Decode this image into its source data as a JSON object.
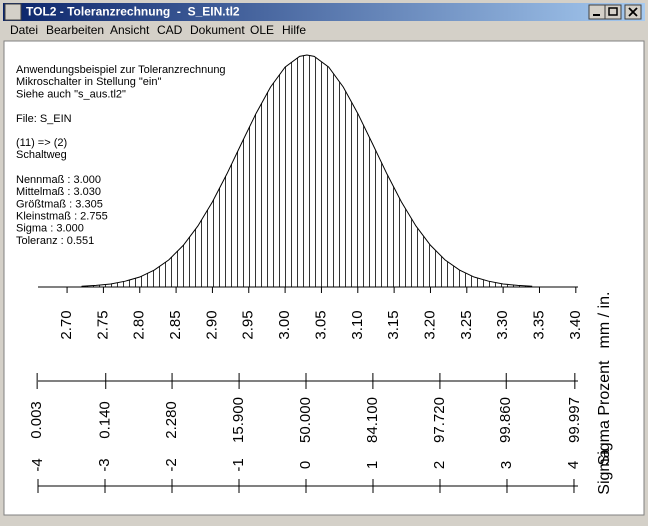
{
  "window": {
    "title": "TOL2 - Toleranzrechnung  -  S_EIN.tl2"
  },
  "menu": [
    "Datei",
    "Bearbeiten",
    "Ansicht",
    "CAD",
    "Dokument",
    "OLE",
    "Hilfe"
  ],
  "info_lines": [
    [
      "Anwendungsbeispiel zur Toleranzrechnung",
      "Mikroschalter in Stellung \"ein\"",
      "Siehe auch \"s_aus.tl2\""
    ],
    [
      "File: S_EIN"
    ],
    [
      "(11) => (2)",
      "Schaltweg"
    ],
    [
      "Nennmaß : 3.000",
      "Mittelmaß : 3.030",
      "Größtmaß : 3.305",
      "Kleinstmaß : 2.755",
      "Sigma : 3.000",
      "Toleranz : 0.551"
    ]
  ],
  "chart_data": {
    "type": "area",
    "x": [
      2.72,
      2.74,
      2.76,
      2.78,
      2.8,
      2.82,
      2.84,
      2.86,
      2.88,
      2.9,
      2.92,
      2.94,
      2.96,
      2.98,
      3.0,
      3.02,
      3.03,
      3.04,
      3.06,
      3.08,
      3.1,
      3.12,
      3.14,
      3.16,
      3.18,
      3.2,
      3.22,
      3.24,
      3.26,
      3.28,
      3.3,
      3.32,
      3.34
    ],
    "values": [
      0.3,
      0.7,
      1.3,
      2.5,
      4.3,
      7.3,
      11.7,
      18.0,
      26.3,
      36.7,
      48.8,
      61.9,
      74.8,
      86.2,
      94.8,
      99.4,
      100,
      99.4,
      94.8,
      86.2,
      74.8,
      61.9,
      48.8,
      36.7,
      26.3,
      18.0,
      11.7,
      7.3,
      4.3,
      2.5,
      1.3,
      0.7,
      0.3
    ],
    "color": "#000000",
    "xlim": [
      2.66,
      3.403
    ],
    "ylim": [
      0,
      100
    ],
    "xlabel": "mm / in.",
    "xticks": [
      {
        "value": 2.7,
        "label": "2.70"
      },
      2.75,
      {
        "value": 2.8,
        "label": "2.80"
      },
      2.85,
      {
        "value": 2.9,
        "label": "2.90"
      },
      2.95,
      {
        "value": 3.0,
        "label": "3.00"
      },
      3.05,
      {
        "value": 3.1,
        "label": "3.10"
      },
      3.15,
      {
        "value": 3.2,
        "label": "3.20"
      },
      3.25,
      {
        "value": 3.3,
        "label": "3.30"
      },
      3.35,
      {
        "value": 3.4,
        "label": "3.40"
      }
    ],
    "percent_axis": {
      "label": "Sigma Prozent",
      "ticks": [
        0.003,
        {
          "value": 0.14,
          "label": "0.140"
        },
        {
          "value": 2.28,
          "label": "2.280"
        },
        {
          "value": 15.9,
          "label": "15.900"
        },
        {
          "value": 50,
          "label": "50.000"
        },
        {
          "value": 84.1,
          "label": "84.100"
        },
        {
          "value": 97.72,
          "label": "97.720"
        },
        {
          "value": 99.86,
          "label": "99.860"
        },
        99.997
      ]
    },
    "sigma_axis": {
      "label": "Sigma",
      "lim": [
        -4,
        4.06
      ],
      "ticks": [
        -4,
        -3,
        -2,
        -1,
        0,
        1,
        2,
        3,
        4
      ]
    }
  }
}
